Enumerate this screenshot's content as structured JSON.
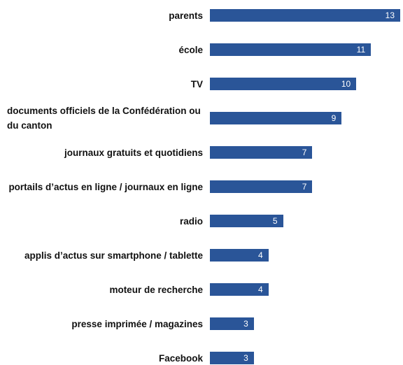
{
  "chart_data": {
    "type": "bar",
    "orientation": "horizontal",
    "color": "#2a5598",
    "categories": [
      "parents",
      "école",
      "TV",
      "documents officiels de la Confédération ou du canton",
      "journaux gratuits et quotidiens",
      "portails d’actus en ligne / journaux en ligne",
      "radio",
      "applis d’actus sur smartphone / tablette",
      "moteur de recherche",
      "presse imprimée / magazines",
      "Facebook"
    ],
    "values": [
      13,
      11,
      10,
      9,
      7,
      7,
      5,
      4,
      4,
      3,
      3
    ]
  }
}
